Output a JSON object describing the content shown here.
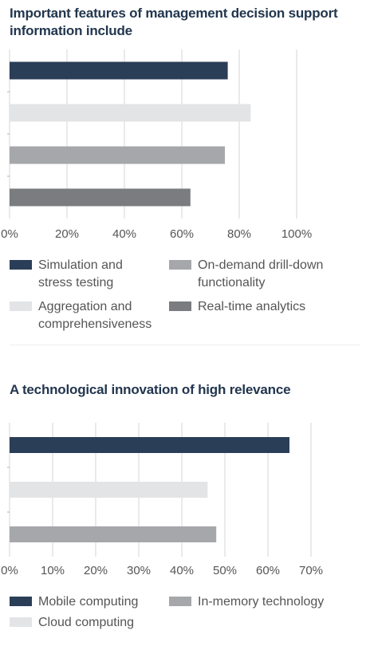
{
  "chart_data": [
    {
      "type": "bar",
      "orientation": "horizontal",
      "title": "Important features of management decision support information include",
      "categories": [
        "Simulation and stress testing",
        "Aggregation and comprehensiveness",
        "On-demand drill-down functionality",
        "Real-time analytics"
      ],
      "values": [
        76,
        84,
        75,
        63
      ],
      "colors": [
        "#2b3e58",
        "#e3e4e6",
        "#a5a7aa",
        "#7a7c7f"
      ],
      "xlim": [
        0,
        100
      ],
      "xticks": [
        "0%",
        "20%",
        "40%",
        "60%",
        "80%",
        "100%"
      ],
      "grid": true,
      "legend": [
        {
          "label": "Simulation and stress testing",
          "color": "#2b3e58"
        },
        {
          "label": "On-demand drill-down functionality",
          "color": "#a5a7aa"
        },
        {
          "label": "Aggregation and comprehensiveness",
          "color": "#e3e4e6"
        },
        {
          "label": "Real-time analytics",
          "color": "#7a7c7f"
        }
      ]
    },
    {
      "type": "bar",
      "orientation": "horizontal",
      "title": "A technological innovation of high relevance",
      "categories": [
        "Mobile computing",
        "Cloud computing",
        "In-memory technology"
      ],
      "values": [
        65,
        46,
        48
      ],
      "colors": [
        "#2b3e58",
        "#e3e4e6",
        "#a5a7aa"
      ],
      "xlim": [
        0,
        70
      ],
      "xticks": [
        "0%",
        "10%",
        "20%",
        "30%",
        "40%",
        "50%",
        "60%",
        "70%"
      ],
      "grid": true,
      "legend": [
        {
          "label": "Mobile computing",
          "color": "#2b3e58"
        },
        {
          "label": "In-memory technology",
          "color": "#a5a7aa"
        },
        {
          "label": "Cloud computing",
          "color": "#e3e4e6"
        }
      ]
    }
  ]
}
